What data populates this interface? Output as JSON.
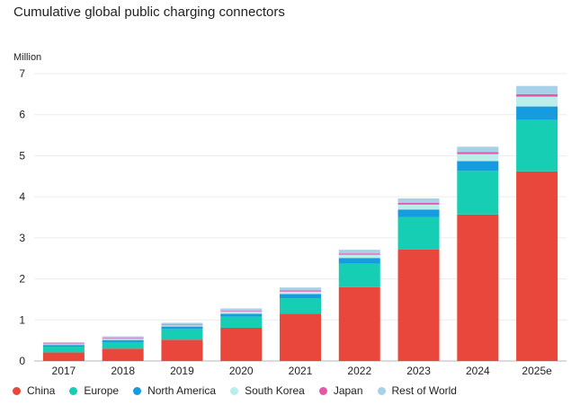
{
  "chart_data": {
    "type": "bar",
    "title": "Cumulative global public charging connectors",
    "ylabel": "Million",
    "ylim": [
      0,
      7
    ],
    "yticks": [
      0,
      1,
      2,
      3,
      4,
      5,
      6,
      7
    ],
    "categories": [
      "2017",
      "2018",
      "2019",
      "2020",
      "2021",
      "2022",
      "2023",
      "2024",
      "2025e"
    ],
    "series": [
      {
        "name": "China",
        "color": "#e9473b",
        "values": [
          0.21,
          0.3,
          0.52,
          0.81,
          1.15,
          1.8,
          2.72,
          3.57,
          4.62
        ]
      },
      {
        "name": "Europe",
        "color": "#16ceb3",
        "values": [
          0.14,
          0.16,
          0.26,
          0.27,
          0.38,
          0.57,
          0.79,
          1.06,
          1.25
        ]
      },
      {
        "name": "North America",
        "color": "#169be0",
        "values": [
          0.04,
          0.05,
          0.06,
          0.07,
          0.1,
          0.14,
          0.18,
          0.24,
          0.33
        ]
      },
      {
        "name": "South Korea",
        "color": "#b9eeeb",
        "values": [
          0.02,
          0.03,
          0.03,
          0.05,
          0.06,
          0.08,
          0.12,
          0.17,
          0.24
        ]
      },
      {
        "name": "Japan",
        "color": "#e458a8",
        "values": [
          0.02,
          0.02,
          0.02,
          0.02,
          0.03,
          0.03,
          0.04,
          0.05,
          0.06
        ]
      },
      {
        "name": "Rest of World",
        "color": "#a7d0e9",
        "values": [
          0.03,
          0.04,
          0.04,
          0.06,
          0.07,
          0.09,
          0.11,
          0.13,
          0.2
        ]
      }
    ],
    "grid": true,
    "legend_position": "bottom-left"
  }
}
